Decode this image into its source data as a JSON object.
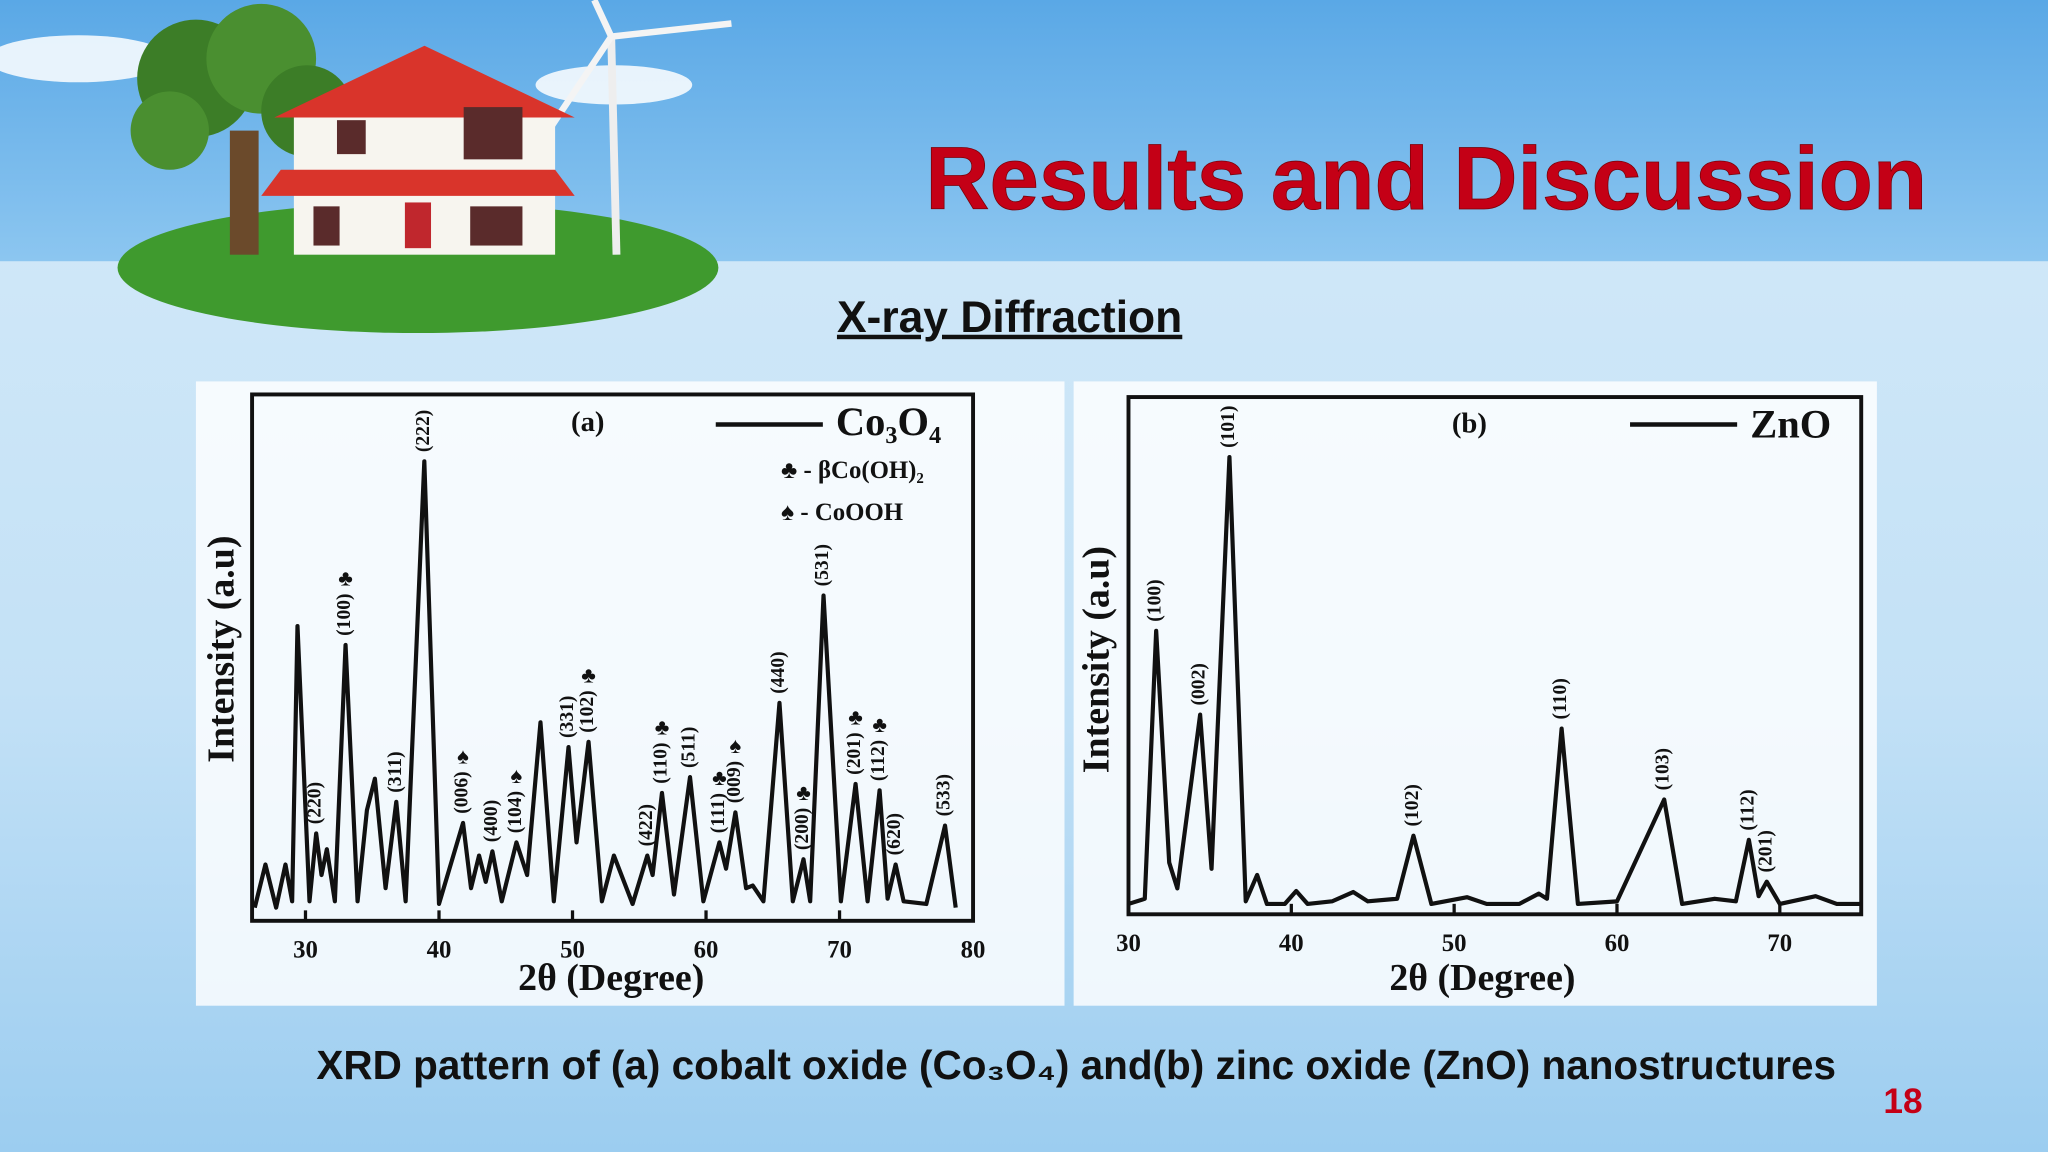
{
  "header": {
    "title": "Results and Discussion"
  },
  "subtitle": "X-ray Diffraction",
  "caption": "XRD pattern of (a) cobalt oxide (Co₃O₄) and(b) zinc oxide (ZnO) nanostructures",
  "page_number": "18",
  "chart_data": [
    {
      "type": "line",
      "panel_label": "(a)",
      "x_label": "2θ (Degree)",
      "y_label": "Intensity (a.u)",
      "xlim": [
        26,
        80
      ],
      "xticks": [
        30,
        40,
        50,
        60,
        70,
        80
      ],
      "ylim": [
        0,
        100
      ],
      "x": [
        26.2,
        27,
        27.8,
        28.5,
        29,
        29.4,
        30.3,
        30.8,
        31.2,
        31.6,
        32.2,
        33,
        33.9,
        34.6,
        35.2,
        36,
        36.8,
        37.5,
        38.9,
        40,
        41.8,
        42.4,
        43,
        43.5,
        44,
        44.7,
        45.8,
        46.6,
        47.6,
        48.6,
        49.7,
        50.3,
        51.2,
        52.2,
        53.1,
        54.5,
        55.6,
        56,
        56.7,
        57.6,
        58.8,
        59.8,
        61,
        61.5,
        62.2,
        63,
        63.5,
        64.3,
        65.5,
        66.5,
        67.3,
        67.8,
        68.8,
        70.1,
        71.2,
        72.1,
        73,
        73.6,
        74.2,
        74.8,
        76.5,
        77.9,
        78.7
      ],
      "series": [
        {
          "name": "Co₃O₄",
          "color": "#111111",
          "values": [
            2.5,
            10.7,
            2.5,
            10.7,
            3.7,
            56,
            3.7,
            16.6,
            8.7,
            13.6,
            3.7,
            52.4,
            3.7,
            21,
            27,
            6.2,
            22.6,
            3.7,
            87.3,
            3.2,
            18.6,
            6.2,
            12.4,
            7.4,
            13.2,
            3.7,
            14.9,
            8.7,
            37.7,
            3.7,
            33,
            14.9,
            34,
            3.7,
            12.4,
            3.2,
            12.4,
            8.7,
            24.3,
            5,
            27.3,
            3.7,
            14.9,
            9.9,
            20.6,
            6.2,
            6.7,
            3.7,
            41.4,
            3.7,
            11.7,
            3.7,
            61.8,
            3.7,
            26,
            3.7,
            24.8,
            4.2,
            10.7,
            3.7,
            3.2,
            18.1,
            2.5
          ]
        }
      ],
      "notes": [
        "♣ - βCo(OH)₂",
        "♠ - CoOOH"
      ],
      "annotations": [
        {
          "label": "(220)",
          "x": 30.8
        },
        {
          "label": "(100)",
          "symbol": "♣",
          "x": 33
        },
        {
          "label": "(311)",
          "x": 36.8
        },
        {
          "label": "(222)",
          "x": 38.9
        },
        {
          "label": "(006)",
          "symbol": "♠",
          "x": 41.8
        },
        {
          "label": "(400)",
          "x": 44
        },
        {
          "label": "(104)",
          "symbol": "♠",
          "x": 45.8
        },
        {
          "label": "(331)",
          "x": 49.7
        },
        {
          "label": "(102)",
          "symbol": "♣",
          "x": 51.2
        },
        {
          "label": "(422)",
          "x": 55.6
        },
        {
          "label": "(110)",
          "symbol": "♣",
          "x": 56.7
        },
        {
          "label": "(511)",
          "x": 58.8
        },
        {
          "label": "(111)",
          "symbol": "♣",
          "x": 61
        },
        {
          "label": "(009)",
          "symbol": "♠",
          "x": 62.2
        },
        {
          "label": "(440)",
          "x": 65.5
        },
        {
          "label": "(200)",
          "symbol": "♣",
          "x": 67.3
        },
        {
          "label": "(531)",
          "x": 68.8
        },
        {
          "label": "(201)",
          "symbol": "♣",
          "x": 71.2
        },
        {
          "label": "(112)",
          "symbol": "♣",
          "x": 73
        },
        {
          "label": "(620)",
          "x": 74.2
        },
        {
          "label": "(533)",
          "x": 77.9
        }
      ]
    },
    {
      "type": "line",
      "panel_label": "(b)",
      "x_label": "2θ (Degree)",
      "y_label": "Intensity (a.u)",
      "xlim": [
        30,
        75
      ],
      "xticks": [
        30,
        40,
        50,
        60,
        70
      ],
      "ylim": [
        0,
        100
      ],
      "x": [
        30,
        31,
        31.7,
        32.5,
        33,
        34.4,
        35.1,
        36.2,
        37.2,
        37.9,
        38.5,
        39.6,
        40.3,
        41,
        42.5,
        43.8,
        44.7,
        46.5,
        47.5,
        48.6,
        50.8,
        52,
        54,
        55.2,
        55.7,
        56.6,
        57.6,
        60,
        62.9,
        64,
        66,
        67.3,
        68.1,
        68.7,
        69.2,
        70,
        72.2,
        73.5,
        75
      ],
      "series": [
        {
          "name": "ZnO",
          "color": "#111111",
          "values": [
            2,
            3,
            54.8,
            10,
            5,
            38.6,
            8.8,
            88.4,
            2.5,
            7.6,
            2,
            2,
            4.5,
            2,
            2.5,
            4.3,
            2.5,
            3,
            15.2,
            2,
            3.3,
            2,
            2,
            4,
            3,
            35.9,
            2,
            2.5,
            22.2,
            2,
            3,
            2.5,
            14.4,
            3.5,
            6.3,
            2,
            3.5,
            2,
            2
          ]
        }
      ],
      "annotations": [
        {
          "label": "(100)",
          "x": 31.7
        },
        {
          "label": "(002)",
          "x": 34.4
        },
        {
          "label": "(101)",
          "x": 36.2
        },
        {
          "label": "(102)",
          "x": 47.5
        },
        {
          "label": "(110)",
          "x": 56.6
        },
        {
          "label": "(103)",
          "x": 62.9
        },
        {
          "label": "(112)",
          "x": 68.1
        },
        {
          "label": "(201)",
          "x": 69.2
        }
      ]
    }
  ]
}
